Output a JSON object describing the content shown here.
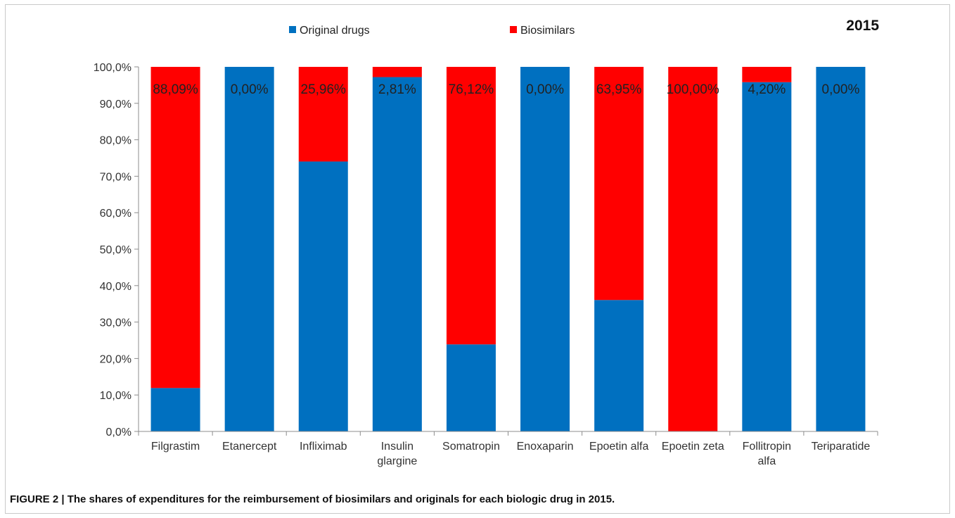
{
  "figure": {
    "caption": "FIGURE 2 | The shares of expenditures for the reimbursement of biosimilars and originals for each biologic drug in 2015."
  },
  "colors": {
    "original": "#0070c0",
    "biosimilar": "#ff0000"
  },
  "chart_data": {
    "type": "bar",
    "stacked": true,
    "title": "2015",
    "legend_position": "top-center",
    "grid": false,
    "ylim": [
      0,
      100
    ],
    "y_ticks": [
      "0,0%",
      "10,0%",
      "20,0%",
      "30,0%",
      "40,0%",
      "50,0%",
      "60,0%",
      "70,0%",
      "80,0%",
      "90,0%",
      "100,0%"
    ],
    "categories": [
      [
        "Filgrastim"
      ],
      [
        "Etanercept"
      ],
      [
        "Infliximab"
      ],
      [
        "Insulin",
        "glargine"
      ],
      [
        "Somatropin"
      ],
      [
        "Enoxaparin"
      ],
      [
        "Epoetin alfa"
      ],
      [
        "Epoetin zeta"
      ],
      [
        "Follitropin",
        "alfa"
      ],
      [
        "Teriparatide"
      ]
    ],
    "series": [
      {
        "name": "Original drugs",
        "values": [
          11.91,
          100.0,
          74.04,
          97.19,
          23.88,
          100.0,
          36.05,
          0.0,
          95.8,
          100.0
        ]
      },
      {
        "name": "Biosimilars",
        "values": [
          88.09,
          0.0,
          25.96,
          2.81,
          76.12,
          0.0,
          63.95,
          100.0,
          4.2,
          0.0
        ]
      }
    ],
    "data_labels": [
      "88,09%",
      "0,00%",
      "25,96%",
      "2,81%",
      "76,12%",
      "0,00%",
      "63,95%",
      "100,00%",
      "4,20%",
      "0,00%"
    ]
  }
}
